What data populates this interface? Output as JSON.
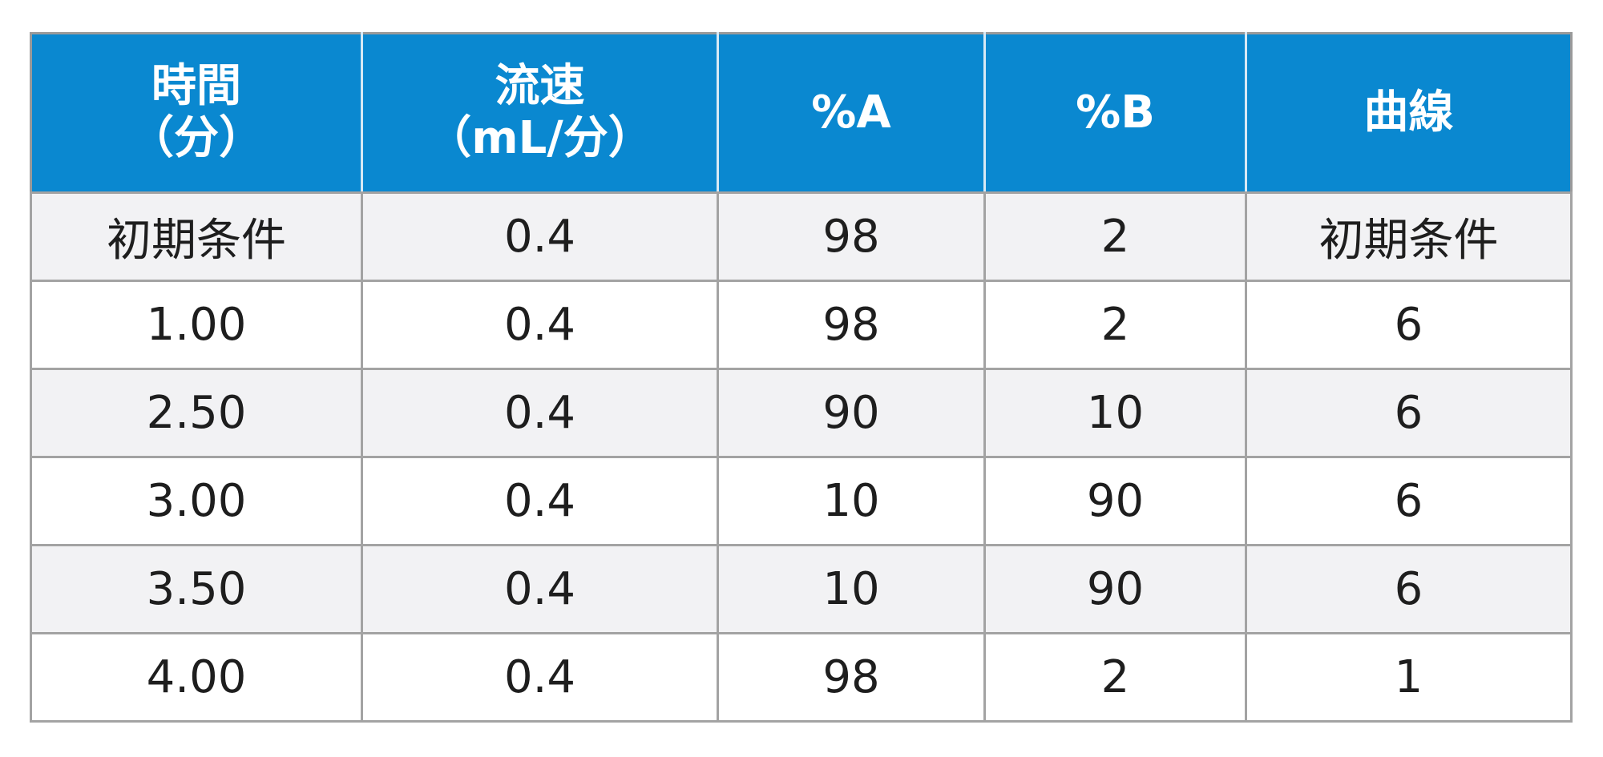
{
  "table": {
    "headers": [
      {
        "line1": "時間",
        "line2": "（分）"
      },
      {
        "line1": "流速",
        "line2": "（mL/分）"
      },
      {
        "line1": "%A",
        "line2": ""
      },
      {
        "line1": "%B",
        "line2": ""
      },
      {
        "line1": "曲線",
        "line2": ""
      }
    ],
    "rows": [
      [
        "初期条件",
        "0.4",
        "98",
        "2",
        "初期条件"
      ],
      [
        "1.00",
        "0.4",
        "98",
        "2",
        "6"
      ],
      [
        "2.50",
        "0.4",
        "90",
        "10",
        "6"
      ],
      [
        "3.00",
        "0.4",
        "10",
        "90",
        "6"
      ],
      [
        "3.50",
        "0.4",
        "10",
        "90",
        "6"
      ],
      [
        "4.00",
        "0.4",
        "98",
        "2",
        "1"
      ]
    ]
  },
  "colors": {
    "header_background": "#0a88d0",
    "header_text": "#ffffff",
    "row_alt_background": "#f2f2f4",
    "row_background": "#ffffff",
    "grid_lines": "#a3a3a3",
    "body_text": "#1e1e1e"
  }
}
